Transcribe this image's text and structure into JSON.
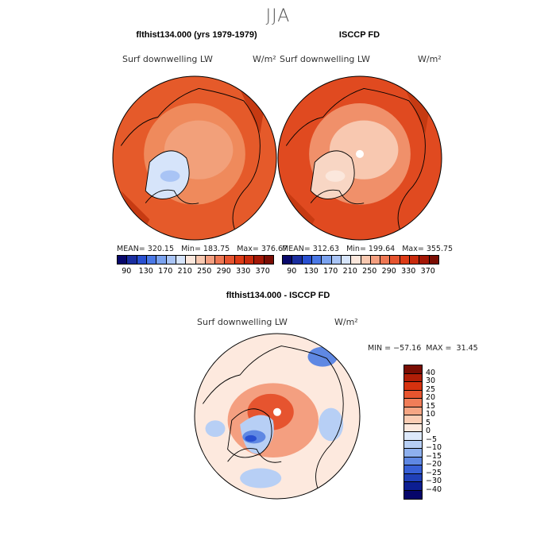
{
  "season": "JJA",
  "panel_left": {
    "title": "flthist134.000 (yrs 1979-1979)",
    "subtitle": "Surf downwelling LW",
    "units": "W/m²",
    "stats": "MEAN= 320.15   Min= 183.75   Max= 376.67"
  },
  "panel_right": {
    "title": "ISCCP FD",
    "subtitle": "Surf downwelling LW",
    "units": "W/m²",
    "stats": "MEAN= 312.63   Min= 199.64   Max= 355.75"
  },
  "panel_diff": {
    "title": "flthist134.000 - ISCCP FD",
    "subtitle": "Surf downwelling LW",
    "units": "W/m²",
    "stats": "MIN = −57.16  MAX =  31.45"
  },
  "colorbar_top": {
    "ticks": [
      "90",
      "130",
      "170",
      "210",
      "250",
      "290",
      "330",
      "370"
    ],
    "colors": [
      "#08086b",
      "#1a2ea0",
      "#2950d1",
      "#4a78e6",
      "#7aa2ef",
      "#a9c4f5",
      "#d6e4fa",
      "#fbe7dc",
      "#f8c8b0",
      "#f49f80",
      "#ee7753",
      "#e6542f",
      "#dd3b16",
      "#c82a0c",
      "#a31705",
      "#7a0d03"
    ]
  },
  "colorbar_diff": {
    "labels": [
      "40",
      "30",
      "25",
      "20",
      "15",
      "10",
      "5",
      "0",
      "−5",
      "−10",
      "−15",
      "−20",
      "−25",
      "−30",
      "−40"
    ],
    "colors": [
      "#7a0d03",
      "#b01e07",
      "#d6320f",
      "#e8552f",
      "#f07d58",
      "#f6a684",
      "#fbcdb4",
      "#fde9de",
      "#dde9fb",
      "#b7cff5",
      "#8eb0ee",
      "#5f88e3",
      "#3860d6",
      "#2040b8",
      "#0c1e92",
      "#06066a"
    ]
  },
  "maps": {
    "left": {
      "base": "#e55a2a",
      "inner": "#ef8a5c",
      "polar": "#f2a07a",
      "greenland": "#d6e4fa",
      "greenland_core": "#a9c4f5"
    },
    "right": {
      "base": "#e04a20",
      "inner": "#f0906a",
      "polar": "#f8c8b0",
      "greenland": "#f8d6c4",
      "greenland_core": "#fbe7dc"
    },
    "diff": {
      "base": "#fde9de",
      "warm": "#f49f80",
      "hot": "#e6542f",
      "cool": "#b7cff5",
      "cold": "#5f88e3",
      "deep": "#2950d1"
    }
  }
}
